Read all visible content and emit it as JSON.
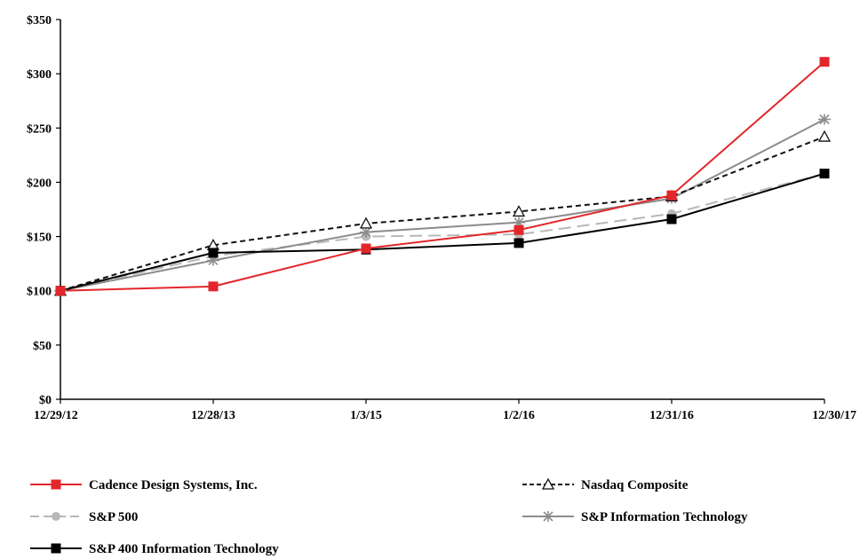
{
  "chart_data": {
    "type": "line",
    "title": "",
    "xlabel": "",
    "ylabel": "",
    "categories": [
      "12/29/12",
      "12/28/13",
      "1/3/15",
      "1/2/16",
      "12/31/16",
      "12/30/17"
    ],
    "ylim": [
      0,
      350
    ],
    "yticks": [
      0,
      50,
      100,
      150,
      200,
      250,
      300,
      350
    ],
    "ytick_labels": [
      "$0",
      "$50",
      "$100",
      "$150",
      "$200",
      "$250",
      "$300",
      "$350"
    ],
    "grid": false,
    "legend_position": "bottom",
    "series": [
      {
        "name": "Cadence Design Systems, Inc.",
        "values": [
          100,
          104,
          139,
          156,
          188,
          311
        ],
        "color": "#e3262a",
        "dash": "",
        "marker": "square",
        "width": 2
      },
      {
        "name": "Nasdaq Composite",
        "values": [
          100,
          142,
          162,
          173,
          187,
          242
        ],
        "color": "#111111",
        "dash": "6,4",
        "marker": "triangle-open",
        "width": 2
      },
      {
        "name": "S&P 500",
        "values": [
          100,
          132,
          150,
          152,
          171,
          208
        ],
        "color": "#b8b8b8",
        "dash": "14,7",
        "marker": "circle",
        "width": 2
      },
      {
        "name": "S&P Information Technology",
        "values": [
          100,
          128,
          154,
          163,
          185,
          258
        ],
        "color": "#8c8c8c",
        "dash": "",
        "marker": "asterisk",
        "width": 2
      },
      {
        "name": "S&P 400 Information Technology",
        "values": [
          100,
          135,
          138,
          144,
          166,
          208
        ],
        "color": "#000000",
        "dash": "",
        "marker": "square",
        "width": 2
      }
    ]
  }
}
